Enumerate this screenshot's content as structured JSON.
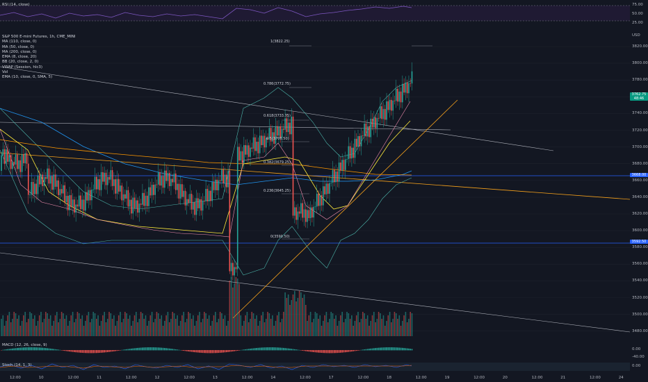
{
  "rsi": {
    "legend": "RSI (14, close)",
    "levels": [
      "75.00",
      "50.00",
      "25.00"
    ]
  },
  "main": {
    "legend": [
      "S&P 500 E-mini Futures, 1h, CME_MINI",
      "MA (110, close, 0)",
      "MA (50, close, 0)",
      "MA (200, close, 0)",
      "EMA (8, close, 20)",
      "BB (20, close, 2, 0)",
      "VWAP (Session, hlc3)",
      "Vol",
      "EMA (10, close, 0, SMA, 5)"
    ],
    "currency": "USD",
    "price_labels": [
      "3820.00",
      "3800.00",
      "3780.00",
      "3760.00",
      "3740.00",
      "3720.00",
      "3700.00",
      "3680.00",
      "3660.00",
      "3640.00",
      "3620.00",
      "3600.00",
      "3580.00",
      "3560.00",
      "3540.00",
      "3520.00",
      "3500.00",
      "3480.00"
    ],
    "last_price": "3762.75",
    "countdown": "48:46",
    "tag_upper": "3668.00",
    "tag_lower": "3592.50",
    "fib_levels": [
      "1(3822.25)",
      "0.786(3772.75)",
      "0.618(3733.75)",
      "0.5(3706.50)",
      "0.382(3679.25)",
      "0.236(3645.25)",
      "0(3590.50)"
    ]
  },
  "macd": {
    "legend": "MACD (12, 26, close, 9)",
    "levels": [
      "0.00",
      "-40.00"
    ]
  },
  "stoch": {
    "legend": "Stoch (14, 1, 3)",
    "levels": [
      "0.00"
    ]
  },
  "time_axis": [
    "12:00",
    "10",
    "12:00",
    "11",
    "12:00",
    "12",
    "12:00",
    "13",
    "12:00",
    "14",
    "12:00",
    "17",
    "12:00",
    "18",
    "12:00",
    "19",
    "12:00",
    "20",
    "12:00",
    "21",
    "12:00",
    "24"
  ],
  "colors": {
    "up": "#26a69a",
    "down": "#ef5350",
    "ma110": "#2196f3",
    "ma200": "#ff9800",
    "ema8": "#ffeb3b",
    "bb": "#4db6ac",
    "ema10": "#f48fb1",
    "trend_orange": "#f7a21b",
    "hline_blue": "#2962ff",
    "trend_white": "#b2b5be"
  }
}
